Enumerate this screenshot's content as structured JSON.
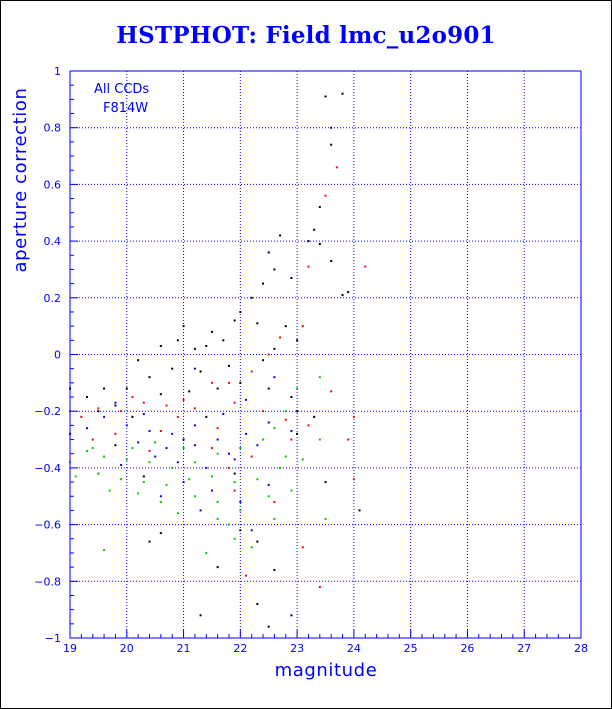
{
  "chart_data": {
    "type": "scatter",
    "title": "HSTPHOT: Field lmc_u2o901",
    "xlabel": "magnitude",
    "ylabel": "aperture correction",
    "xlim": [
      19,
      28
    ],
    "ylim": [
      -1,
      1
    ],
    "x_ticks": [
      19,
      20,
      21,
      22,
      23,
      24,
      25,
      26,
      27,
      28
    ],
    "y_ticks": [
      -1,
      -0.8,
      -0.6,
      -0.4,
      -0.2,
      0,
      0.2,
      0.4,
      0.6,
      0.8,
      1
    ],
    "x_tick_labels": [
      "19",
      "20",
      "21",
      "22",
      "23",
      "24",
      "25",
      "26",
      "27",
      "28"
    ],
    "y_tick_labels": [
      "−1",
      "−0.8",
      "−0.6",
      "−0.4",
      "−0.2",
      "0",
      "0.2",
      "0.4",
      "0.6",
      "0.8",
      "1"
    ],
    "grid": true,
    "grid_style": "dotted",
    "annotations": [
      "All CCDs",
      "F814W"
    ],
    "colors": {
      "axis": "#0000ff",
      "grid": "#0000ff"
    },
    "series": [
      {
        "color": "#000000",
        "points": [
          [
            23.5,
            0.91
          ],
          [
            23.8,
            0.92
          ],
          [
            23.6,
            0.8
          ],
          [
            23.6,
            0.74
          ],
          [
            23.4,
            0.52
          ],
          [
            23.3,
            0.44
          ],
          [
            23.4,
            0.39
          ],
          [
            23.9,
            0.22
          ],
          [
            23.8,
            0.21
          ],
          [
            23.2,
            0.4
          ],
          [
            23.6,
            0.33
          ],
          [
            22.5,
            0.36
          ],
          [
            22.7,
            0.42
          ],
          [
            22.6,
            0.3
          ],
          [
            22.9,
            0.27
          ],
          [
            22.4,
            0.25
          ],
          [
            22.2,
            0.2
          ],
          [
            22.3,
            0.11
          ],
          [
            22.0,
            0.15
          ],
          [
            21.9,
            0.12
          ],
          [
            21.5,
            0.08
          ],
          [
            21.7,
            0.05
          ],
          [
            21.4,
            0.03
          ],
          [
            21.2,
            0.02
          ],
          [
            21.0,
            0.1
          ],
          [
            20.6,
            0.03
          ],
          [
            20.2,
            -0.02
          ],
          [
            20.9,
            0.05
          ],
          [
            22.8,
            0.1
          ],
          [
            23.0,
            0.05
          ],
          [
            22.6,
            0.02
          ],
          [
            22.4,
            -0.02
          ],
          [
            21.8,
            -0.04
          ],
          [
            21.3,
            -0.06
          ],
          [
            20.8,
            -0.05
          ],
          [
            20.4,
            -0.08
          ],
          [
            20.0,
            -0.12
          ],
          [
            19.6,
            -0.12
          ],
          [
            19.3,
            -0.15
          ],
          [
            19.0,
            -0.12
          ],
          [
            19.8,
            -0.18
          ],
          [
            20.6,
            -0.14
          ],
          [
            21.1,
            -0.13
          ],
          [
            21.6,
            -0.12
          ],
          [
            22.0,
            -0.1
          ],
          [
            22.5,
            -0.12
          ],
          [
            22.9,
            -0.15
          ],
          [
            23.0,
            -0.2
          ],
          [
            23.3,
            -0.22
          ],
          [
            23.0,
            -0.28
          ],
          [
            22.7,
            -0.4
          ],
          [
            22.0,
            -0.62
          ],
          [
            22.3,
            -0.66
          ],
          [
            20.6,
            -0.63
          ],
          [
            20.4,
            -0.66
          ],
          [
            21.6,
            -0.75
          ],
          [
            22.6,
            -0.76
          ],
          [
            22.3,
            -0.88
          ],
          [
            21.3,
            -0.92
          ],
          [
            22.9,
            -0.92
          ],
          [
            22.5,
            -0.96
          ],
          [
            23.5,
            -0.45
          ],
          [
            24.1,
            -0.55
          ],
          [
            21.9,
            -0.42
          ],
          [
            20.3,
            -0.43
          ],
          [
            19.8,
            -0.32
          ],
          [
            21.0,
            -0.3
          ],
          [
            19.5,
            -0.2
          ],
          [
            20.1,
            -0.22
          ],
          [
            21.4,
            -0.22
          ]
        ]
      },
      {
        "color": "#ff0000",
        "points": [
          [
            23.7,
            0.66
          ],
          [
            23.5,
            0.56
          ],
          [
            23.2,
            0.31
          ],
          [
            24.2,
            0.31
          ],
          [
            23.1,
            0.1
          ],
          [
            22.7,
            0.06
          ],
          [
            22.5,
            0.0
          ],
          [
            22.2,
            -0.06
          ],
          [
            21.8,
            -0.1
          ],
          [
            21.5,
            -0.1
          ],
          [
            21.0,
            -0.16
          ],
          [
            20.7,
            -0.18
          ],
          [
            20.3,
            -0.17
          ],
          [
            19.9,
            -0.2
          ],
          [
            19.5,
            -0.19
          ],
          [
            19.2,
            -0.22
          ],
          [
            19.0,
            -0.2
          ],
          [
            20.1,
            -0.15
          ],
          [
            21.2,
            -0.19
          ],
          [
            21.9,
            -0.17
          ],
          [
            22.4,
            -0.2
          ],
          [
            22.8,
            -0.23
          ],
          [
            23.2,
            -0.25
          ],
          [
            23.6,
            -0.13
          ],
          [
            24.0,
            -0.22
          ],
          [
            24.0,
            -0.44
          ],
          [
            23.9,
            -0.3
          ],
          [
            22.9,
            -0.3
          ],
          [
            22.2,
            -0.36
          ],
          [
            21.5,
            -0.33
          ],
          [
            20.6,
            -0.27
          ],
          [
            19.8,
            -0.28
          ],
          [
            19.4,
            -0.3
          ],
          [
            20.4,
            -0.34
          ],
          [
            21.8,
            -0.4
          ],
          [
            22.6,
            -0.52
          ],
          [
            23.1,
            -0.68
          ],
          [
            21.9,
            -0.48
          ],
          [
            23.4,
            -0.82
          ],
          [
            22.1,
            -0.78
          ],
          [
            20.9,
            -0.22
          ],
          [
            21.6,
            -0.26
          ]
        ]
      },
      {
        "color": "#0000ff",
        "points": [
          [
            21.2,
            -0.05
          ],
          [
            22.6,
            -0.08
          ],
          [
            22.1,
            -0.16
          ],
          [
            21.7,
            -0.21
          ],
          [
            21.2,
            -0.25
          ],
          [
            20.8,
            -0.28
          ],
          [
            20.4,
            -0.27
          ],
          [
            20.0,
            -0.25
          ],
          [
            19.6,
            -0.22
          ],
          [
            19.3,
            -0.26
          ],
          [
            19.0,
            -0.28
          ],
          [
            20.2,
            -0.31
          ],
          [
            20.7,
            -0.33
          ],
          [
            21.2,
            -0.32
          ],
          [
            21.6,
            -0.3
          ],
          [
            22.1,
            -0.28
          ],
          [
            22.5,
            -0.24
          ],
          [
            22.9,
            -0.27
          ],
          [
            22.3,
            -0.32
          ],
          [
            21.9,
            -0.37
          ],
          [
            21.4,
            -0.4
          ],
          [
            20.9,
            -0.38
          ],
          [
            20.5,
            -0.36
          ],
          [
            19.9,
            -0.39
          ],
          [
            19.5,
            -0.42
          ],
          [
            21.0,
            -0.45
          ],
          [
            21.5,
            -0.48
          ],
          [
            22.0,
            -0.52
          ],
          [
            22.5,
            -0.46
          ],
          [
            20.6,
            -0.5
          ],
          [
            21.3,
            -0.55
          ],
          [
            22.2,
            -0.62
          ],
          [
            21.8,
            -0.35
          ],
          [
            20.3,
            -0.21
          ],
          [
            19.8,
            -0.17
          ]
        ]
      },
      {
        "color": "#00cc00",
        "points": [
          [
            23.4,
            -0.08
          ],
          [
            23.0,
            -0.12
          ],
          [
            22.8,
            -0.2
          ],
          [
            22.6,
            -0.26
          ],
          [
            22.4,
            -0.3
          ],
          [
            22.0,
            -0.33
          ],
          [
            21.6,
            -0.35
          ],
          [
            21.2,
            -0.38
          ],
          [
            20.8,
            -0.4
          ],
          [
            20.4,
            -0.38
          ],
          [
            20.0,
            -0.37
          ],
          [
            19.6,
            -0.36
          ],
          [
            19.3,
            -0.34
          ],
          [
            19.0,
            -0.38
          ],
          [
            19.1,
            -0.43
          ],
          [
            19.5,
            -0.42
          ],
          [
            19.9,
            -0.44
          ],
          [
            20.3,
            -0.45
          ],
          [
            20.7,
            -0.46
          ],
          [
            21.1,
            -0.44
          ],
          [
            21.5,
            -0.43
          ],
          [
            21.9,
            -0.45
          ],
          [
            22.3,
            -0.44
          ],
          [
            22.7,
            -0.4
          ],
          [
            23.1,
            -0.37
          ],
          [
            23.4,
            -0.3
          ],
          [
            22.8,
            -0.36
          ],
          [
            22.5,
            -0.5
          ],
          [
            22.0,
            -0.55
          ],
          [
            21.6,
            -0.52
          ],
          [
            21.2,
            -0.5
          ],
          [
            20.6,
            -0.52
          ],
          [
            20.2,
            -0.49
          ],
          [
            19.7,
            -0.48
          ],
          [
            20.9,
            -0.56
          ],
          [
            21.8,
            -0.6
          ],
          [
            22.2,
            -0.68
          ],
          [
            21.4,
            -0.7
          ],
          [
            21.9,
            -0.65
          ],
          [
            19.6,
            -0.69
          ],
          [
            21.6,
            -0.58
          ],
          [
            22.9,
            -0.48
          ],
          [
            23.5,
            -0.58
          ],
          [
            22.6,
            -0.58
          ],
          [
            20.1,
            -0.33
          ],
          [
            20.5,
            -0.31
          ],
          [
            21.0,
            -0.33
          ],
          [
            19.4,
            -0.33
          ]
        ]
      }
    ]
  }
}
